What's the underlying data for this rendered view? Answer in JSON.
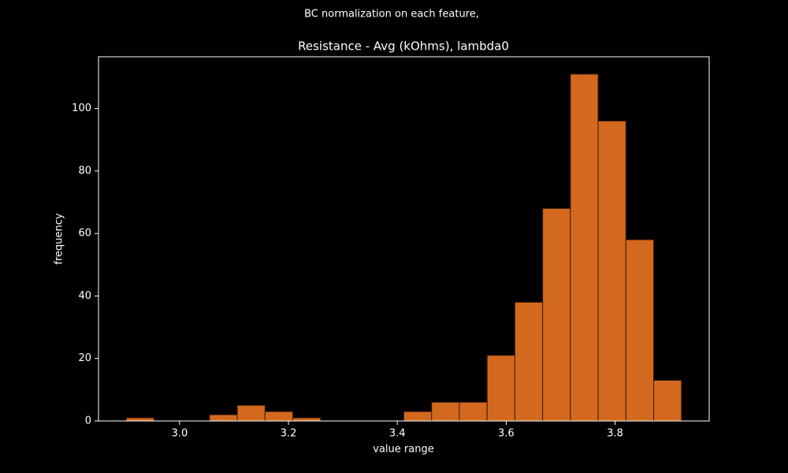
{
  "chart_data": {
    "type": "histogram",
    "suptitle": "BC normalization on each feature,",
    "title": "Resistance - Avg (kOhms), lambda0",
    "xlabel": "value range",
    "ylabel": "frequency",
    "bins": [
      2.902,
      2.953,
      3.004,
      3.055,
      3.106,
      3.157,
      3.208,
      3.259,
      3.31,
      3.361,
      3.412,
      3.463,
      3.514,
      3.565,
      3.616,
      3.667,
      3.718,
      3.769,
      3.82,
      3.871,
      3.922
    ],
    "values": [
      1,
      0,
      0,
      2,
      5,
      3,
      1,
      0,
      0,
      0,
      3,
      6,
      6,
      21,
      38,
      68,
      111,
      96,
      58,
      13
    ],
    "color": "#d2691e",
    "edgecolor": "#3a1a08",
    "xlim": [
      2.851,
      3.973
    ],
    "xticks": [
      {
        "value": 3,
        "label": "3.0"
      },
      3.2,
      3.4,
      3.6,
      3.8
    ],
    "ylim": [
      0,
      116.55
    ],
    "yticks": [
      0,
      20,
      40,
      60,
      80,
      100
    ]
  }
}
